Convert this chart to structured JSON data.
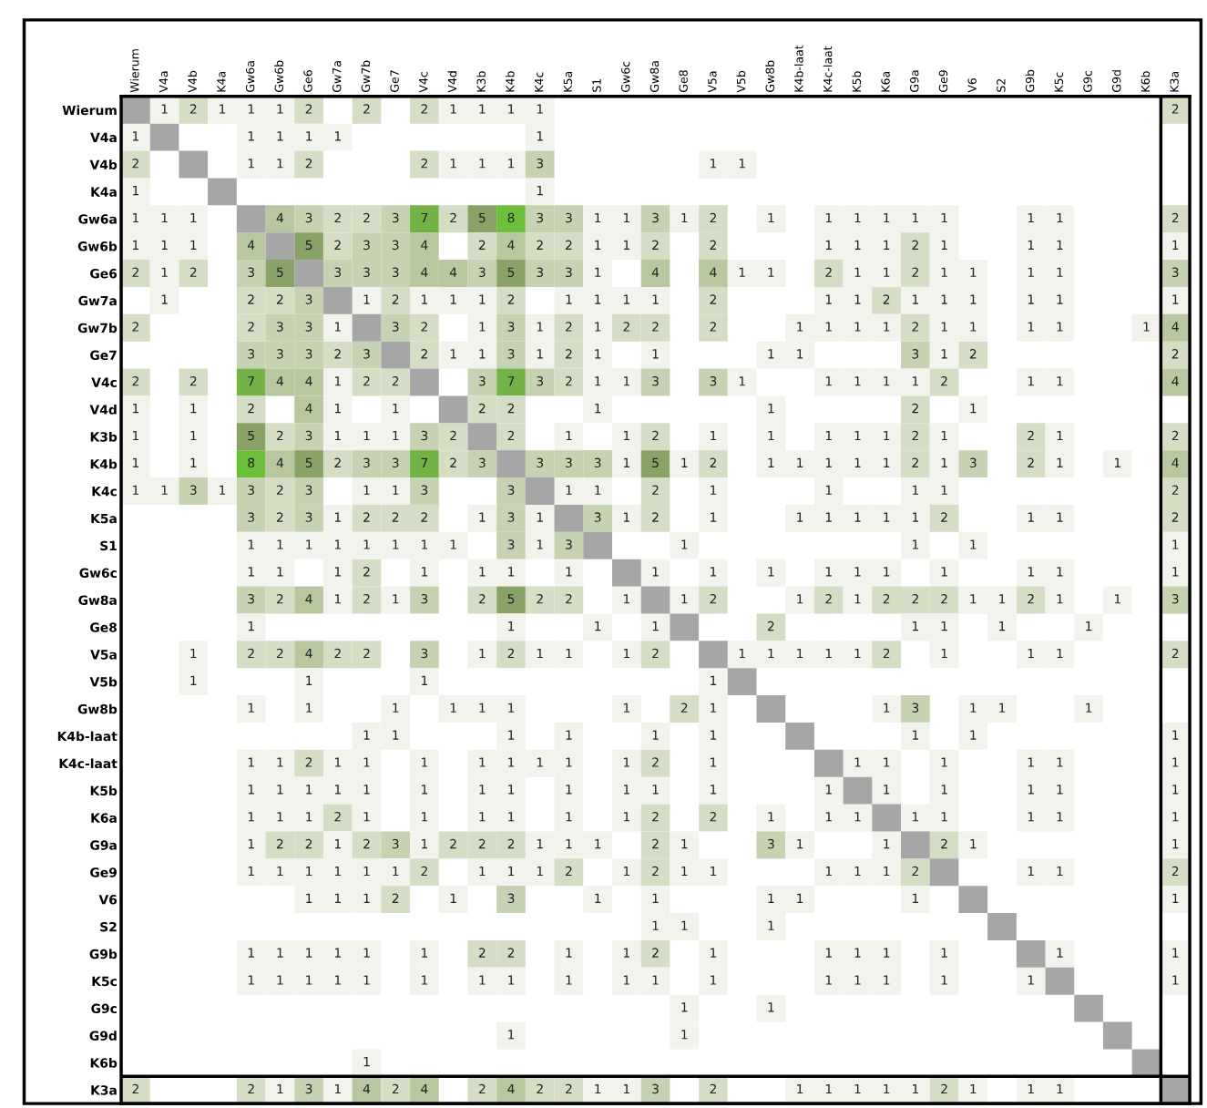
{
  "chart_data": {
    "type": "heatmap",
    "data_labels": true,
    "grid": false,
    "categories": [
      "Wierum",
      "V4a",
      "V4b",
      "K4a",
      "Gw6a",
      "Gw6b",
      "Ge6",
      "Gw7a",
      "Gw7b",
      "Ge7",
      "V4c",
      "V4d",
      "K3b",
      "K4b",
      "K4c",
      "K5a",
      "S1",
      "Gw6c",
      "Gw8a",
      "Ge8",
      "V5a",
      "V5b",
      "Gw8b",
      "K4b-laat",
      "K4c-laat",
      "K5b",
      "K6a",
      "G9a",
      "Ge9",
      "V6",
      "S2",
      "G9b",
      "K5c",
      "G9c",
      "G9d",
      "K6b",
      "K3a"
    ],
    "y_categories": [
      "Wierum",
      "V4a",
      "V4b",
      "K4a",
      "Gw6a",
      "Gw6b",
      "Ge6",
      "Gw7a",
      "Gw7b",
      "Ge7",
      "V4c",
      "V4d",
      "K3b",
      "K4b",
      "K4c",
      "K5a",
      "S1",
      "Gw6c",
      "Gw8a",
      "Ge8",
      "V5a",
      "V5b",
      "Gw8b",
      "K4b-laat",
      "K4c-laat",
      "K5b",
      "K6a",
      "G9a",
      "Ge9",
      "V6",
      "S2",
      "G9b",
      "K5c",
      "G9c",
      "G9d",
      "K6b",
      "K3a"
    ],
    "cells": [
      [
        null,
        1,
        2,
        1,
        1,
        1,
        2,
        null,
        2,
        null,
        2,
        1,
        1,
        1,
        1,
        null,
        null,
        null,
        null,
        null,
        null,
        null,
        null,
        null,
        null,
        null,
        null,
        null,
        null,
        null,
        null,
        null,
        null,
        null,
        null,
        null,
        2
      ],
      [
        1,
        null,
        null,
        null,
        1,
        1,
        1,
        1,
        null,
        null,
        null,
        null,
        null,
        null,
        1,
        null,
        null,
        null,
        null,
        null,
        null,
        null,
        null,
        null,
        null,
        null,
        null,
        null,
        null,
        null,
        null,
        null,
        null,
        null,
        null,
        null,
        null
      ],
      [
        2,
        null,
        null,
        null,
        1,
        1,
        2,
        null,
        null,
        null,
        2,
        1,
        1,
        1,
        3,
        null,
        null,
        null,
        null,
        null,
        1,
        1,
        null,
        null,
        null,
        null,
        null,
        null,
        null,
        null,
        null,
        null,
        null,
        null,
        null,
        null,
        null
      ],
      [
        1,
        null,
        null,
        null,
        null,
        null,
        null,
        null,
        null,
        null,
        null,
        null,
        null,
        null,
        1,
        null,
        null,
        null,
        null,
        null,
        null,
        null,
        null,
        null,
        null,
        null,
        null,
        null,
        null,
        null,
        null,
        null,
        null,
        null,
        null,
        null,
        null
      ],
      [
        1,
        1,
        1,
        null,
        null,
        4,
        3,
        2,
        2,
        3,
        7,
        2,
        5,
        8,
        3,
        3,
        1,
        1,
        3,
        1,
        2,
        null,
        1,
        null,
        1,
        1,
        1,
        1,
        1,
        null,
        null,
        1,
        1,
        null,
        null,
        null,
        2
      ],
      [
        1,
        1,
        1,
        null,
        4,
        null,
        5,
        2,
        3,
        3,
        4,
        null,
        2,
        4,
        2,
        2,
        1,
        1,
        2,
        null,
        2,
        null,
        null,
        null,
        1,
        1,
        1,
        2,
        1,
        null,
        null,
        1,
        1,
        null,
        null,
        null,
        1
      ],
      [
        2,
        1,
        2,
        null,
        3,
        5,
        null,
        3,
        3,
        3,
        4,
        4,
        3,
        5,
        3,
        3,
        1,
        null,
        4,
        null,
        4,
        1,
        1,
        null,
        2,
        1,
        1,
        2,
        1,
        1,
        null,
        1,
        1,
        null,
        null,
        null,
        3
      ],
      [
        null,
        1,
        null,
        null,
        2,
        2,
        3,
        null,
        1,
        2,
        1,
        1,
        1,
        2,
        null,
        1,
        1,
        1,
        1,
        null,
        2,
        null,
        null,
        null,
        1,
        1,
        2,
        1,
        1,
        1,
        null,
        1,
        1,
        null,
        null,
        null,
        1
      ],
      [
        2,
        null,
        null,
        null,
        2,
        3,
        3,
        1,
        null,
        3,
        2,
        null,
        1,
        3,
        1,
        2,
        1,
        2,
        2,
        null,
        2,
        null,
        null,
        1,
        1,
        1,
        1,
        2,
        1,
        1,
        null,
        1,
        1,
        null,
        null,
        1,
        4
      ],
      [
        null,
        null,
        null,
        null,
        3,
        3,
        3,
        2,
        3,
        null,
        2,
        1,
        1,
        3,
        1,
        2,
        1,
        null,
        1,
        null,
        null,
        null,
        1,
        1,
        null,
        null,
        null,
        3,
        1,
        2,
        null,
        null,
        null,
        null,
        null,
        null,
        2
      ],
      [
        2,
        null,
        2,
        null,
        7,
        4,
        4,
        1,
        2,
        2,
        null,
        null,
        3,
        7,
        3,
        2,
        1,
        1,
        3,
        null,
        3,
        1,
        null,
        null,
        1,
        1,
        1,
        1,
        2,
        null,
        null,
        1,
        1,
        null,
        null,
        null,
        4
      ],
      [
        1,
        null,
        1,
        null,
        2,
        null,
        4,
        1,
        null,
        1,
        null,
        null,
        2,
        2,
        null,
        null,
        1,
        null,
        null,
        null,
        null,
        null,
        1,
        null,
        null,
        null,
        null,
        2,
        null,
        1,
        null,
        null,
        null,
        null,
        null,
        null,
        null
      ],
      [
        1,
        null,
        1,
        null,
        5,
        2,
        3,
        1,
        1,
        1,
        3,
        2,
        null,
        2,
        null,
        1,
        null,
        1,
        2,
        null,
        1,
        null,
        1,
        null,
        1,
        1,
        1,
        2,
        1,
        null,
        null,
        2,
        1,
        null,
        null,
        null,
        2
      ],
      [
        1,
        null,
        1,
        null,
        8,
        4,
        5,
        2,
        3,
        3,
        7,
        2,
        3,
        null,
        3,
        3,
        3,
        1,
        5,
        1,
        2,
        null,
        1,
        1,
        1,
        1,
        1,
        2,
        1,
        3,
        null,
        2,
        1,
        null,
        1,
        null,
        4
      ],
      [
        1,
        1,
        3,
        1,
        3,
        2,
        3,
        null,
        1,
        1,
        3,
        null,
        null,
        3,
        null,
        1,
        1,
        null,
        2,
        null,
        1,
        null,
        null,
        null,
        1,
        null,
        null,
        1,
        1,
        null,
        null,
        null,
        null,
        null,
        null,
        null,
        2
      ],
      [
        null,
        null,
        null,
        null,
        3,
        2,
        3,
        1,
        2,
        2,
        2,
        null,
        1,
        3,
        1,
        null,
        3,
        1,
        2,
        null,
        1,
        null,
        null,
        1,
        1,
        1,
        1,
        1,
        2,
        null,
        null,
        1,
        1,
        null,
        null,
        null,
        2
      ],
      [
        null,
        null,
        null,
        null,
        1,
        1,
        1,
        1,
        1,
        1,
        1,
        1,
        null,
        3,
        1,
        3,
        null,
        null,
        null,
        1,
        null,
        null,
        null,
        null,
        null,
        null,
        null,
        1,
        null,
        1,
        null,
        null,
        null,
        null,
        null,
        null,
        1
      ],
      [
        null,
        null,
        null,
        null,
        1,
        1,
        null,
        1,
        2,
        null,
        1,
        null,
        1,
        1,
        null,
        1,
        null,
        null,
        1,
        null,
        1,
        null,
        1,
        null,
        1,
        1,
        1,
        null,
        1,
        null,
        null,
        1,
        1,
        null,
        null,
        null,
        1
      ],
      [
        null,
        null,
        null,
        null,
        3,
        2,
        4,
        1,
        2,
        1,
        3,
        null,
        2,
        5,
        2,
        2,
        null,
        1,
        null,
        1,
        2,
        null,
        null,
        1,
        2,
        1,
        2,
        2,
        2,
        1,
        1,
        2,
        1,
        null,
        1,
        null,
        3
      ],
      [
        null,
        null,
        null,
        null,
        1,
        null,
        null,
        null,
        null,
        null,
        null,
        null,
        null,
        1,
        null,
        null,
        1,
        null,
        1,
        null,
        null,
        null,
        2,
        null,
        null,
        null,
        null,
        1,
        1,
        null,
        1,
        null,
        null,
        1,
        null,
        null,
        null
      ],
      [
        null,
        null,
        1,
        null,
        2,
        2,
        4,
        2,
        2,
        null,
        3,
        null,
        1,
        2,
        1,
        1,
        null,
        1,
        2,
        null,
        null,
        1,
        1,
        1,
        1,
        1,
        2,
        null,
        1,
        null,
        null,
        1,
        1,
        null,
        null,
        null,
        2
      ],
      [
        null,
        null,
        1,
        null,
        null,
        null,
        1,
        null,
        null,
        null,
        1,
        null,
        null,
        null,
        null,
        null,
        null,
        null,
        null,
        null,
        1,
        null,
        null,
        null,
        null,
        null,
        null,
        null,
        null,
        null,
        null,
        null,
        null,
        null,
        null,
        null,
        null
      ],
      [
        null,
        null,
        null,
        null,
        1,
        null,
        1,
        null,
        null,
        1,
        null,
        1,
        1,
        1,
        null,
        null,
        null,
        1,
        null,
        2,
        1,
        null,
        null,
        null,
        null,
        null,
        1,
        3,
        null,
        1,
        1,
        null,
        null,
        1,
        null,
        null,
        null
      ],
      [
        null,
        null,
        null,
        null,
        null,
        null,
        null,
        null,
        1,
        1,
        null,
        null,
        null,
        1,
        null,
        1,
        null,
        null,
        1,
        null,
        1,
        null,
        null,
        null,
        null,
        null,
        null,
        1,
        null,
        1,
        null,
        null,
        null,
        null,
        null,
        null,
        1
      ],
      [
        null,
        null,
        null,
        null,
        1,
        1,
        2,
        1,
        1,
        null,
        1,
        null,
        1,
        1,
        1,
        1,
        null,
        1,
        2,
        null,
        1,
        null,
        null,
        null,
        null,
        1,
        1,
        null,
        1,
        null,
        null,
        1,
        1,
        null,
        null,
        null,
        1
      ],
      [
        null,
        null,
        null,
        null,
        1,
        1,
        1,
        1,
        1,
        null,
        1,
        null,
        1,
        1,
        null,
        1,
        null,
        1,
        1,
        null,
        1,
        null,
        null,
        null,
        1,
        null,
        1,
        null,
        1,
        null,
        null,
        1,
        1,
        null,
        null,
        null,
        1
      ],
      [
        null,
        null,
        null,
        null,
        1,
        1,
        1,
        2,
        1,
        null,
        1,
        null,
        1,
        1,
        null,
        1,
        null,
        1,
        2,
        null,
        2,
        null,
        1,
        null,
        1,
        1,
        null,
        1,
        1,
        null,
        null,
        1,
        1,
        null,
        null,
        null,
        1
      ],
      [
        null,
        null,
        null,
        null,
        1,
        2,
        2,
        1,
        2,
        3,
        1,
        2,
        2,
        2,
        1,
        1,
        1,
        null,
        2,
        1,
        null,
        null,
        3,
        1,
        null,
        null,
        1,
        null,
        2,
        1,
        null,
        null,
        null,
        null,
        null,
        null,
        1
      ],
      [
        null,
        null,
        null,
        null,
        1,
        1,
        1,
        1,
        1,
        1,
        2,
        null,
        1,
        1,
        1,
        2,
        null,
        1,
        2,
        1,
        1,
        null,
        null,
        null,
        1,
        1,
        1,
        2,
        null,
        null,
        null,
        1,
        1,
        null,
        null,
        null,
        2
      ],
      [
        null,
        null,
        null,
        null,
        null,
        null,
        1,
        1,
        1,
        2,
        null,
        1,
        null,
        3,
        null,
        null,
        1,
        null,
        1,
        null,
        null,
        null,
        1,
        1,
        null,
        null,
        null,
        1,
        null,
        null,
        null,
        null,
        null,
        null,
        null,
        null,
        1
      ],
      [
        null,
        null,
        null,
        null,
        null,
        null,
        null,
        null,
        null,
        null,
        null,
        null,
        null,
        null,
        null,
        null,
        null,
        null,
        1,
        1,
        null,
        null,
        1,
        null,
        null,
        null,
        null,
        null,
        null,
        null,
        null,
        null,
        null,
        null,
        null,
        null,
        null
      ],
      [
        null,
        null,
        null,
        null,
        1,
        1,
        1,
        1,
        1,
        null,
        1,
        null,
        2,
        2,
        null,
        1,
        null,
        1,
        2,
        null,
        1,
        null,
        null,
        null,
        1,
        1,
        1,
        null,
        1,
        null,
        null,
        null,
        1,
        null,
        null,
        null,
        1
      ],
      [
        null,
        null,
        null,
        null,
        1,
        1,
        1,
        1,
        1,
        null,
        1,
        null,
        1,
        1,
        null,
        1,
        null,
        1,
        1,
        null,
        1,
        null,
        null,
        null,
        1,
        1,
        1,
        null,
        1,
        null,
        null,
        1,
        null,
        null,
        null,
        null,
        1
      ],
      [
        null,
        null,
        null,
        null,
        null,
        null,
        null,
        null,
        null,
        null,
        null,
        null,
        null,
        null,
        null,
        null,
        null,
        null,
        null,
        1,
        null,
        null,
        1,
        null,
        null,
        null,
        null,
        null,
        null,
        null,
        null,
        null,
        null,
        null,
        null,
        null,
        null
      ],
      [
        null,
        null,
        null,
        null,
        null,
        null,
        null,
        null,
        null,
        null,
        null,
        null,
        null,
        1,
        null,
        null,
        null,
        null,
        null,
        1,
        null,
        null,
        null,
        null,
        null,
        null,
        null,
        null,
        null,
        null,
        null,
        null,
        null,
        null,
        null,
        null,
        null
      ],
      [
        null,
        null,
        null,
        null,
        null,
        null,
        null,
        null,
        1,
        null,
        null,
        null,
        null,
        null,
        null,
        null,
        null,
        null,
        null,
        null,
        null,
        null,
        null,
        null,
        null,
        null,
        null,
        null,
        null,
        null,
        null,
        null,
        null,
        null,
        null,
        null,
        null
      ],
      [
        2,
        null,
        null,
        null,
        2,
        1,
        3,
        1,
        4,
        2,
        4,
        null,
        2,
        4,
        2,
        2,
        1,
        1,
        3,
        null,
        2,
        null,
        null,
        1,
        1,
        1,
        1,
        1,
        2,
        1,
        null,
        1,
        1,
        null,
        null,
        null,
        null
      ]
    ]
  }
}
